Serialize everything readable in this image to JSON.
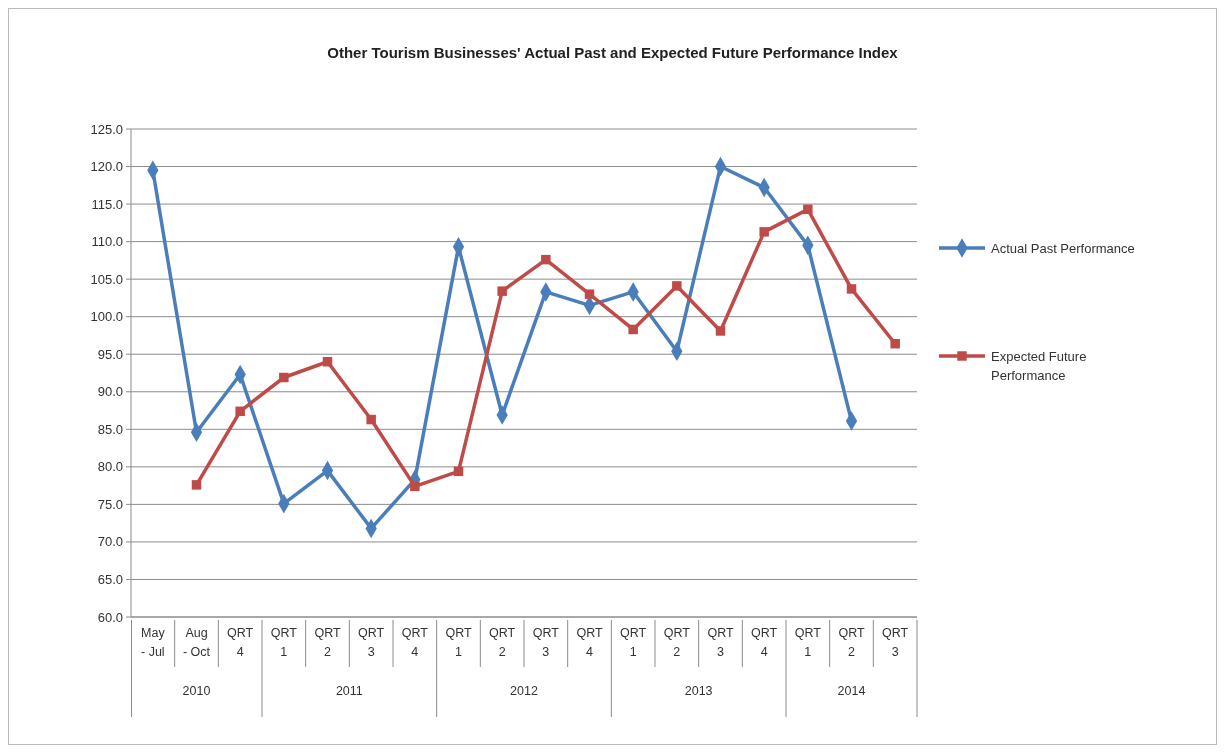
{
  "chart_data": {
    "type": "line",
    "title": "Other Tourism Businesses' Actual Past and Expected Future Performance Index",
    "categories": [
      "May - Jul",
      "Aug - Oct",
      "QRT 4",
      "QRT 1",
      "QRT 2",
      "QRT 3",
      "QRT 4",
      "QRT 1",
      "QRT 2",
      "QRT 3",
      "QRT 4",
      "QRT 1",
      "QRT 2",
      "QRT 3",
      "QRT 4",
      "QRT 1",
      "QRT 2",
      "QRT 3"
    ],
    "series": [
      {
        "name": "Actual Past Performance",
        "color": "#4a7ebb",
        "marker": "diamond",
        "values": [
          119.5,
          84.6,
          92.3,
          75.1,
          79.5,
          71.8,
          78.3,
          109.3,
          86.9,
          103.3,
          101.5,
          103.3,
          95.4,
          120.0,
          117.2,
          109.5,
          86.1,
          null
        ]
      },
      {
        "name": "Expected Future Performance",
        "color": "#be4b48",
        "marker": "square",
        "values": [
          null,
          77.6,
          87.4,
          91.9,
          94.0,
          86.3,
          77.4,
          79.4,
          103.4,
          107.6,
          103.0,
          98.3,
          104.1,
          98.1,
          111.3,
          114.3,
          103.7,
          96.4
        ]
      }
    ],
    "ylim": [
      60,
      125
    ],
    "yticks": [
      {
        "value": 60,
        "label": "60.0"
      },
      {
        "value": 65,
        "label": "65.0"
      },
      {
        "value": 70,
        "label": "70.0"
      },
      {
        "value": 75,
        "label": "75.0"
      },
      {
        "value": 80,
        "label": "80.0"
      },
      {
        "value": 85,
        "label": "85.0"
      },
      {
        "value": 90,
        "label": "90.0"
      },
      {
        "value": 95,
        "label": "95.0"
      },
      {
        "value": 100,
        "label": "100.0"
      },
      {
        "value": 105,
        "label": "105.0"
      },
      {
        "value": 110,
        "label": "110.0"
      },
      {
        "value": 115,
        "label": "115.0"
      },
      {
        "value": 120,
        "label": "120.0"
      },
      {
        "value": 125,
        "label": "125.0"
      }
    ],
    "grid": "y",
    "legend": "right",
    "line_style": "solid",
    "annotations": [
      "2010",
      "2011",
      "2012",
      "2013",
      "2014"
    ]
  }
}
